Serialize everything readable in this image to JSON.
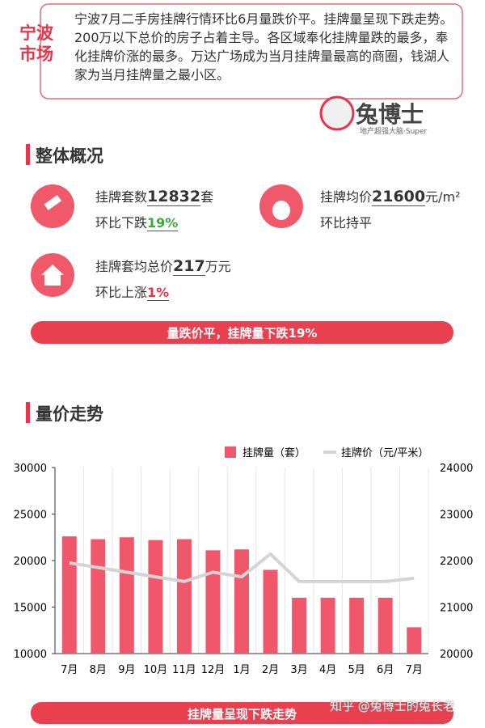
{
  "header": {
    "region": "宁波市场",
    "summary": "宁波7月二手房挂牌行情环比6月量跌价平。挂牌量呈现下跌走势。200万以下总价的房子占着主导。各区域奉化挂牌量跌的最多，奉化挂牌价涨的最多。万达广场成为当月挂牌量最高的商圈，钱湖人家为当月挂牌量之最小区。",
    "logo": "兔博士",
    "logo_sub": "地产超强大脑·Super"
  },
  "overview": {
    "title": "整体概况",
    "items": [
      {
        "label": "挂牌套数",
        "value": "12832",
        "unit": "套",
        "change_label": "环比下跌",
        "change_value": "19%"
      },
      {
        "label": "挂牌均价",
        "value": "21600",
        "unit": "元/m²",
        "change_label": "环比持平"
      },
      {
        "label": "挂牌套均总价",
        "value": "217",
        "unit": "万元",
        "change_label": "环比上涨",
        "change_value": "1%"
      }
    ],
    "banner": "量跌价平，挂牌量下跌19%"
  },
  "trend": {
    "title": "量价走势",
    "banner": "挂牌量呈现下跌走势",
    "watermark": "知乎 @兔博士的兔长老"
  },
  "chart_data": {
    "type": "bar",
    "categories": [
      "7月",
      "8月",
      "9月",
      "10月",
      "11月",
      "12月",
      "1月",
      "2月",
      "3月",
      "4月",
      "5月",
      "6月",
      "7月"
    ],
    "series": [
      {
        "name": "挂牌量（套）",
        "color": "#f1576b",
        "values": [
          22600,
          22300,
          22500,
          22200,
          22300,
          21100,
          21200,
          19000,
          16000,
          16000,
          16000,
          16000,
          12832
        ]
      },
      {
        "name": "挂牌价（元/平米）",
        "color": "#d4d4d4",
        "axis": "y2",
        "type": "line",
        "values": [
          21950,
          21850,
          21750,
          21650,
          21550,
          21750,
          21650,
          22140,
          21550,
          21550,
          21550,
          21550,
          21620
        ]
      }
    ],
    "ylim": [
      10000,
      30000
    ],
    "yticks": [
      10000,
      15000,
      20000,
      25000,
      30000
    ],
    "y2lim": [
      20000,
      24000
    ],
    "y2ticks": [
      20000,
      21000,
      22000,
      23000,
      24000
    ],
    "grid": true
  }
}
